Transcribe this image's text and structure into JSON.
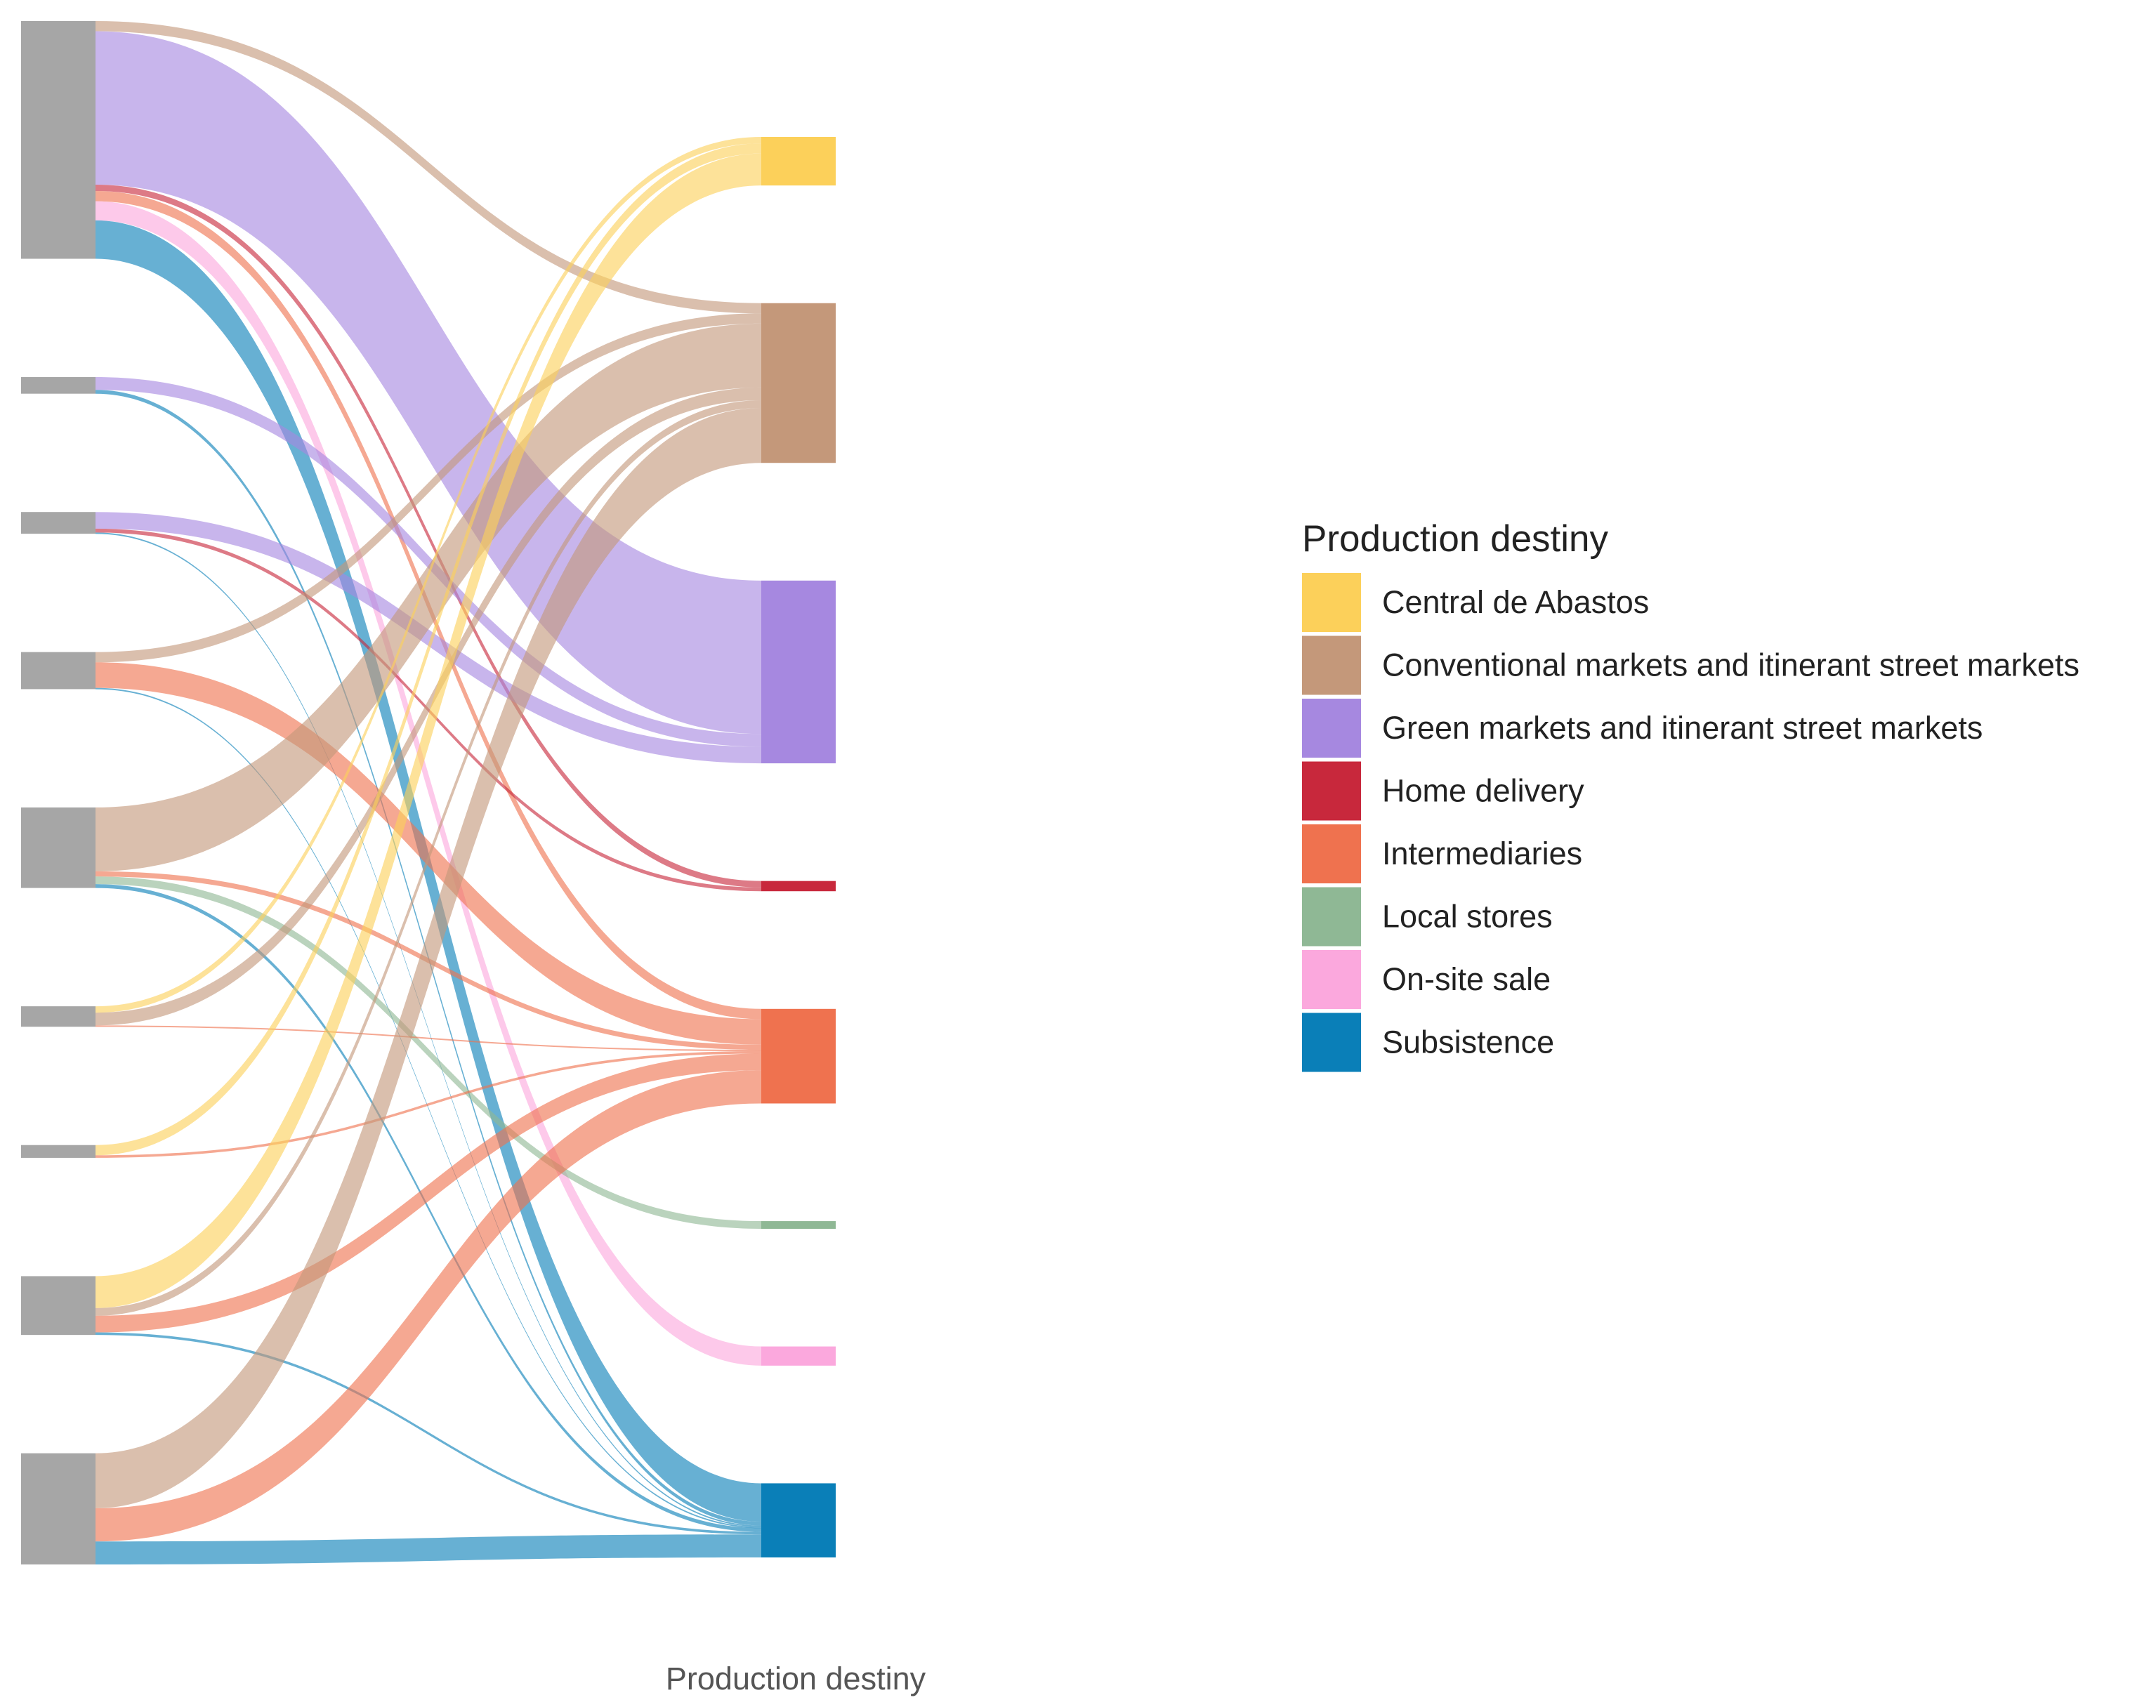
{
  "chart_data": {
    "type": "sankey",
    "xlabel": "Production destiny",
    "legend": {
      "title": "Production destiny",
      "position": "right"
    },
    "destinations": [
      {
        "name": "Central de Abastos",
        "color": "#FCD05A"
      },
      {
        "name": "Conventional markets and itinerant street markets",
        "color": "#C4987A"
      },
      {
        "name": "Green markets and itinerant street markets",
        "color": "#A688E0"
      },
      {
        "name": "Home delivery",
        "color": "#C8283C"
      },
      {
        "name": "Intermediaries",
        "color": "#EF724F"
      },
      {
        "name": "Local stores",
        "color": "#8FB895"
      },
      {
        "name": "On-site sale",
        "color": "#FBA8DD"
      },
      {
        "name": "Subsistence",
        "color": "#0A7FB8"
      }
    ],
    "source_color": "#A6A6A6",
    "source_count": 9,
    "flows": [
      {
        "source": 0,
        "target": "Conventional markets and itinerant street markets",
        "value": 0.8
      },
      {
        "source": 0,
        "target": "Green markets and itinerant street markets",
        "value": 12
      },
      {
        "source": 0,
        "target": "Intermediaries",
        "value": 0.8
      },
      {
        "source": 0,
        "target": "Home delivery",
        "value": 0.5
      },
      {
        "source": 0,
        "target": "On-site sale",
        "value": 1.5
      },
      {
        "source": 0,
        "target": "Subsistence",
        "value": 3
      },
      {
        "source": 1,
        "target": "Green markets and itinerant street markets",
        "value": 1
      },
      {
        "source": 1,
        "target": "Subsistence",
        "value": 0.3
      },
      {
        "source": 2,
        "target": "Green markets and itinerant street markets",
        "value": 1.3
      },
      {
        "source": 2,
        "target": "Home delivery",
        "value": 0.3
      },
      {
        "source": 2,
        "target": "Subsistence",
        "value": 0.1
      },
      {
        "source": 3,
        "target": "Conventional markets and itinerant street markets",
        "value": 0.8
      },
      {
        "source": 3,
        "target": "Intermediaries",
        "value": 2
      },
      {
        "source": 3,
        "target": "Subsistence",
        "value": 0.1
      },
      {
        "source": 4,
        "target": "Conventional markets and itinerant street markets",
        "value": 5
      },
      {
        "source": 4,
        "target": "Intermediaries",
        "value": 0.4
      },
      {
        "source": 4,
        "target": "Local stores",
        "value": 0.6
      },
      {
        "source": 4,
        "target": "Subsistence",
        "value": 0.3
      },
      {
        "source": 5,
        "target": "Central de Abastos",
        "value": 0.5
      },
      {
        "source": 5,
        "target": "Conventional markets and itinerant street markets",
        "value": 1
      },
      {
        "source": 5,
        "target": "Intermediaries",
        "value": 0.1
      },
      {
        "source": 6,
        "target": "Central de Abastos",
        "value": 0.8
      },
      {
        "source": 6,
        "target": "Intermediaries",
        "value": 0.2
      },
      {
        "source": 7,
        "target": "Central de Abastos",
        "value": 2.5
      },
      {
        "source": 7,
        "target": "Conventional markets and itinerant street markets",
        "value": 0.6
      },
      {
        "source": 7,
        "target": "Intermediaries",
        "value": 1.3
      },
      {
        "source": 7,
        "target": "Subsistence",
        "value": 0.2
      },
      {
        "source": 8,
        "target": "Conventional markets and itinerant street markets",
        "value": 4.3
      },
      {
        "source": 8,
        "target": "Intermediaries",
        "value": 2.6
      },
      {
        "source": 8,
        "target": "Subsistence",
        "value": 1.8
      }
    ]
  }
}
